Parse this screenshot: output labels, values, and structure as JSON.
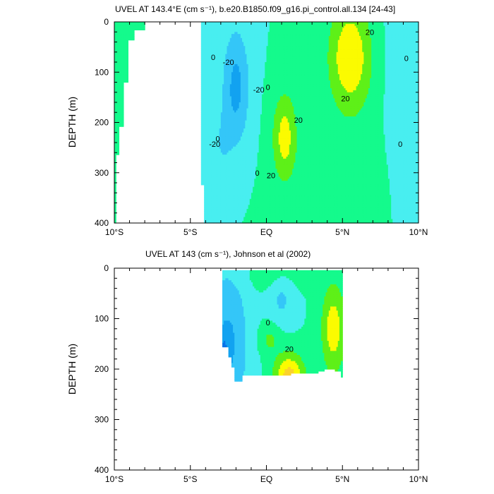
{
  "chart_data": [
    {
      "type": "contour",
      "title": "UVEL AT 143.4°E (cm s⁻¹), b.e20.B1850.f09_g16.pi_control.all.134 [24-43]",
      "ylabel": "DEPTH (m)",
      "xlim": [
        -10,
        10
      ],
      "ylim": [
        0,
        400
      ],
      "y_reversed": true,
      "x_ticks": [
        {
          "value": -10,
          "label": "10°S"
        },
        {
          "value": -5,
          "label": "5°S"
        },
        {
          "value": 0,
          "label": "EQ"
        },
        {
          "value": 5,
          "label": "5°N"
        },
        {
          "value": 10,
          "label": "10°N"
        }
      ],
      "y_ticks": [
        0,
        100,
        200,
        300,
        400
      ],
      "contour_interval": 10,
      "contour_labels": [
        {
          "lat": -2.5,
          "depth": 80,
          "text": "-20"
        },
        {
          "lat": -3.5,
          "depth": 70,
          "text": "0"
        },
        {
          "lat": -0.5,
          "depth": 135,
          "text": "-20"
        },
        {
          "lat": 0.1,
          "depth": 130,
          "text": "0"
        },
        {
          "lat": 2.1,
          "depth": 195,
          "text": "20"
        },
        {
          "lat": -3.4,
          "depth": 243,
          "text": "-20"
        },
        {
          "lat": -3.2,
          "depth": 232,
          "text": "0"
        },
        {
          "lat": -0.6,
          "depth": 300,
          "text": "0"
        },
        {
          "lat": 0.3,
          "depth": 305,
          "text": "20"
        },
        {
          "lat": 5.2,
          "depth": 152,
          "text": "20"
        },
        {
          "lat": 6.8,
          "depth": 20,
          "text": "20"
        },
        {
          "lat": 9.2,
          "depth": 72,
          "text": "0"
        },
        {
          "lat": 8.8,
          "depth": 243,
          "text": "0"
        }
      ]
    },
    {
      "type": "contour",
      "title": "UVEL AT 143 (cm s⁻¹), Johnson et al (2002)",
      "ylabel": "DEPTH (m)",
      "xlim": [
        -10,
        10
      ],
      "ylim": [
        0,
        400
      ],
      "y_reversed": true,
      "x_ticks": [
        {
          "value": -10,
          "label": "10°S"
        },
        {
          "value": -5,
          "label": "5°S"
        },
        {
          "value": 0,
          "label": "EQ"
        },
        {
          "value": 5,
          "label": "5°N"
        },
        {
          "value": 10,
          "label": "10°N"
        }
      ],
      "y_ticks": [
        0,
        100,
        200,
        300,
        400
      ],
      "contour_interval": 10,
      "contour_labels": [
        {
          "lat": 0.1,
          "depth": 108,
          "text": "0"
        },
        {
          "lat": 1.5,
          "depth": 160,
          "text": "20"
        }
      ]
    }
  ],
  "colors": {
    "le_-30": "#0a74e8",
    "-30_-20": "#12a2f0",
    "-20_-10": "#34c6f8",
    "-10_0": "#48eef0",
    "0_10": "#14fa8c",
    "10_20": "#5ef018",
    "20_30": "#fbfb00",
    "30_40": "#fbd22c",
    "ge_40": "#f8a63c"
  }
}
